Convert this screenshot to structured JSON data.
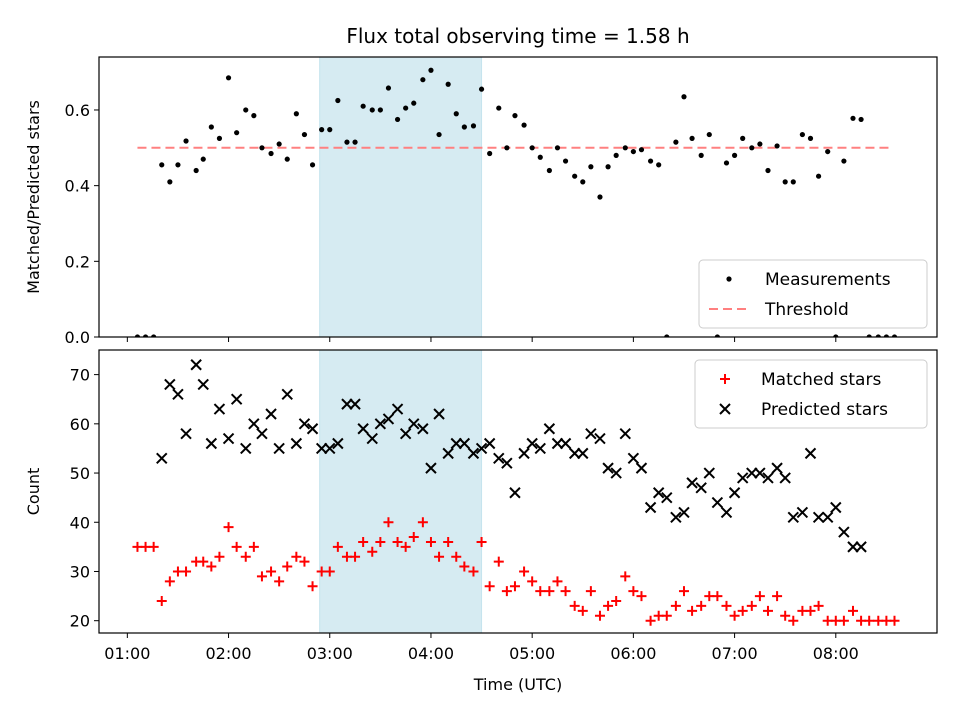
{
  "chart_data": [
    {
      "type": "scatter",
      "title": "Flux total observing time = 1.58 h",
      "xlabel": "",
      "ylabel": "Matched/Predicted stars",
      "ylim": [
        0,
        0.74
      ],
      "yticks": [
        0.0,
        0.2,
        0.4,
        0.6
      ],
      "ytick_labels": [
        "0.0",
        "0.2",
        "0.4",
        "0.6"
      ],
      "xlim": [
        0.72,
        9.0
      ],
      "highlight_span": {
        "x0": 2.9,
        "x1": 4.5,
        "color": "#add8e6"
      },
      "legend": {
        "placement": "lower-right",
        "entries": [
          {
            "label": "Measurements",
            "marker": "dot",
            "color": "#000000"
          },
          {
            "label": "Threshold",
            "marker": "dashed-line",
            "color": "#ff8080"
          }
        ]
      },
      "threshold": {
        "y": 0.5,
        "x0": 1.1,
        "x1": 8.55,
        "color": "#ff8080"
      },
      "series": [
        {
          "name": "Measurements",
          "color": "#000000",
          "x": [
            1.1,
            1.18,
            1.26,
            1.34,
            1.42,
            1.5,
            1.58,
            1.68,
            1.75,
            1.83,
            1.91,
            2.0,
            2.08,
            2.17,
            2.25,
            2.33,
            2.42,
            2.5,
            2.58,
            2.67,
            2.75,
            2.83,
            2.92,
            3.0,
            3.08,
            3.17,
            3.25,
            3.33,
            3.42,
            3.5,
            3.58,
            3.67,
            3.75,
            3.83,
            3.92,
            4.0,
            4.08,
            4.17,
            4.25,
            4.33,
            4.42,
            4.5,
            4.58,
            4.67,
            4.75,
            4.83,
            4.92,
            5.0,
            5.08,
            5.17,
            5.25,
            5.33,
            5.42,
            5.5,
            5.58,
            5.67,
            5.75,
            5.83,
            5.92,
            6.0,
            6.08,
            6.17,
            6.25,
            6.33,
            6.42,
            6.5,
            6.58,
            6.67,
            6.75,
            6.83,
            6.92,
            7.0,
            7.08,
            7.17,
            7.25,
            7.33,
            7.42,
            7.5,
            7.58,
            7.67,
            7.75,
            7.83,
            7.92,
            8.0,
            8.08,
            8.17,
            8.25,
            8.33,
            8.42,
            8.5,
            8.58
          ],
          "y": [
            0.0,
            0.0,
            0.0,
            0.455,
            0.41,
            0.455,
            0.518,
            0.44,
            0.47,
            0.555,
            0.525,
            0.685,
            0.54,
            0.6,
            0.585,
            0.5,
            0.485,
            0.51,
            0.47,
            0.59,
            0.535,
            0.455,
            0.548,
            0.548,
            0.625,
            0.515,
            0.515,
            0.61,
            0.6,
            0.6,
            0.658,
            0.575,
            0.605,
            0.618,
            0.68,
            0.705,
            0.535,
            0.668,
            0.59,
            0.555,
            0.558,
            0.655,
            0.485,
            0.605,
            0.5,
            0.585,
            0.56,
            0.5,
            0.475,
            0.44,
            0.5,
            0.465,
            0.425,
            0.41,
            0.45,
            0.37,
            0.45,
            0.48,
            0.5,
            0.49,
            0.495,
            0.465,
            0.455,
            0.0,
            0.515,
            0.635,
            0.525,
            0.48,
            0.535,
            0.0,
            0.46,
            0.48,
            0.525,
            0.5,
            0.51,
            0.44,
            0.505,
            0.41,
            0.41,
            0.535,
            0.525,
            0.425,
            0.49,
            0.0,
            0.465,
            0.578,
            0.575,
            0.0,
            0.0,
            0.0,
            0.0
          ]
        }
      ]
    },
    {
      "type": "scatter",
      "title": "",
      "xlabel": "Time (UTC)",
      "ylabel": "Count",
      "ylim": [
        17.5,
        75
      ],
      "yticks": [
        20,
        30,
        40,
        50,
        60,
        70
      ],
      "ytick_labels": [
        "20",
        "30",
        "40",
        "50",
        "60",
        "70"
      ],
      "xlim": [
        0.72,
        9.0
      ],
      "xticks": [
        1,
        2,
        3,
        4,
        5,
        6,
        7,
        8
      ],
      "xtick_labels": [
        "01:00",
        "02:00",
        "03:00",
        "04:00",
        "05:00",
        "06:00",
        "07:00",
        "08:00"
      ],
      "highlight_span": {
        "x0": 2.9,
        "x1": 4.5,
        "color": "#add8e6"
      },
      "legend": {
        "placement": "upper-right",
        "entries": [
          {
            "label": "Matched stars",
            "marker": "plus",
            "color": "#ff0000"
          },
          {
            "label": "Predicted stars",
            "marker": "x",
            "color": "#000000"
          }
        ]
      },
      "series": [
        {
          "name": "Matched stars",
          "marker": "plus",
          "color": "#ff0000",
          "x": [
            1.1,
            1.18,
            1.26,
            1.34,
            1.42,
            1.5,
            1.58,
            1.68,
            1.75,
            1.83,
            1.91,
            2.0,
            2.08,
            2.17,
            2.25,
            2.33,
            2.42,
            2.5,
            2.58,
            2.67,
            2.75,
            2.83,
            2.92,
            3.0,
            3.08,
            3.17,
            3.25,
            3.33,
            3.42,
            3.5,
            3.58,
            3.67,
            3.75,
            3.83,
            3.92,
            4.0,
            4.08,
            4.17,
            4.25,
            4.33,
            4.42,
            4.5,
            4.58,
            4.67,
            4.75,
            4.83,
            4.92,
            5.0,
            5.08,
            5.17,
            5.25,
            5.33,
            5.42,
            5.5,
            5.58,
            5.67,
            5.75,
            5.83,
            5.92,
            6.0,
            6.08,
            6.17,
            6.25,
            6.33,
            6.42,
            6.5,
            6.58,
            6.67,
            6.75,
            6.83,
            6.92,
            7.0,
            7.08,
            7.17,
            7.25,
            7.33,
            7.42,
            7.5,
            7.58,
            7.67,
            7.75,
            7.83,
            7.92,
            8.0,
            8.08,
            8.17,
            8.25,
            8.33,
            8.42,
            8.5,
            8.58
          ],
          "y": [
            35,
            35,
            35,
            24,
            28,
            30,
            30,
            32,
            32,
            31,
            33,
            39,
            35,
            33,
            35,
            29,
            30,
            28,
            31,
            33,
            32,
            27,
            30,
            30,
            35,
            33,
            33,
            36,
            34,
            36,
            40,
            36,
            35,
            37,
            40,
            36,
            33,
            36,
            33,
            31,
            30,
            36,
            27,
            32,
            26,
            27,
            30,
            28,
            26,
            26,
            28,
            26,
            23,
            22,
            26,
            21,
            23,
            24,
            29,
            26,
            25,
            20,
            21,
            21,
            23,
            26,
            22,
            23,
            25,
            25,
            23,
            21,
            22,
            23,
            25,
            22,
            25,
            21,
            20,
            22,
            22,
            23,
            20,
            20,
            20,
            22,
            20,
            20,
            20,
            20,
            20
          ]
        },
        {
          "name": "Predicted stars",
          "marker": "x",
          "color": "#000000",
          "x": [
            1.34,
            1.42,
            1.5,
            1.58,
            1.68,
            1.75,
            1.83,
            1.91,
            2.0,
            2.08,
            2.17,
            2.25,
            2.33,
            2.42,
            2.5,
            2.58,
            2.67,
            2.75,
            2.83,
            2.92,
            3.0,
            3.08,
            3.17,
            3.25,
            3.33,
            3.42,
            3.5,
            3.58,
            3.67,
            3.75,
            3.83,
            3.92,
            4.0,
            4.08,
            4.17,
            4.25,
            4.33,
            4.42,
            4.5,
            4.58,
            4.67,
            4.75,
            4.83,
            4.92,
            5.0,
            5.08,
            5.17,
            5.25,
            5.33,
            5.42,
            5.5,
            5.58,
            5.67,
            5.75,
            5.83,
            5.92,
            6.0,
            6.08,
            6.17,
            6.25,
            6.33,
            6.42,
            6.5,
            6.58,
            6.67,
            6.75,
            6.83,
            6.92,
            7.0,
            7.08,
            7.17,
            7.25,
            7.33,
            7.42,
            7.5,
            7.58,
            7.67,
            7.75,
            7.83,
            7.92,
            8.0,
            8.08,
            8.17,
            8.25
          ],
          "y": [
            53,
            68,
            66,
            58,
            72,
            68,
            56,
            63,
            57,
            65,
            55,
            60,
            58,
            62,
            55,
            66,
            56,
            60,
            59,
            55,
            55,
            56,
            64,
            64,
            59,
            57,
            60,
            61,
            63,
            58,
            60,
            59,
            51,
            62,
            54,
            56,
            56,
            54,
            55,
            56,
            53,
            52,
            46,
            54,
            56,
            55,
            59,
            56,
            56,
            54,
            54,
            58,
            57,
            51,
            50,
            58,
            53,
            51,
            43,
            46,
            45,
            41,
            42,
            48,
            47,
            50,
            44,
            42,
            46,
            49,
            50,
            50,
            49,
            51,
            49,
            41,
            42,
            54,
            41,
            41,
            43,
            38,
            35,
            35
          ]
        }
      ]
    }
  ]
}
